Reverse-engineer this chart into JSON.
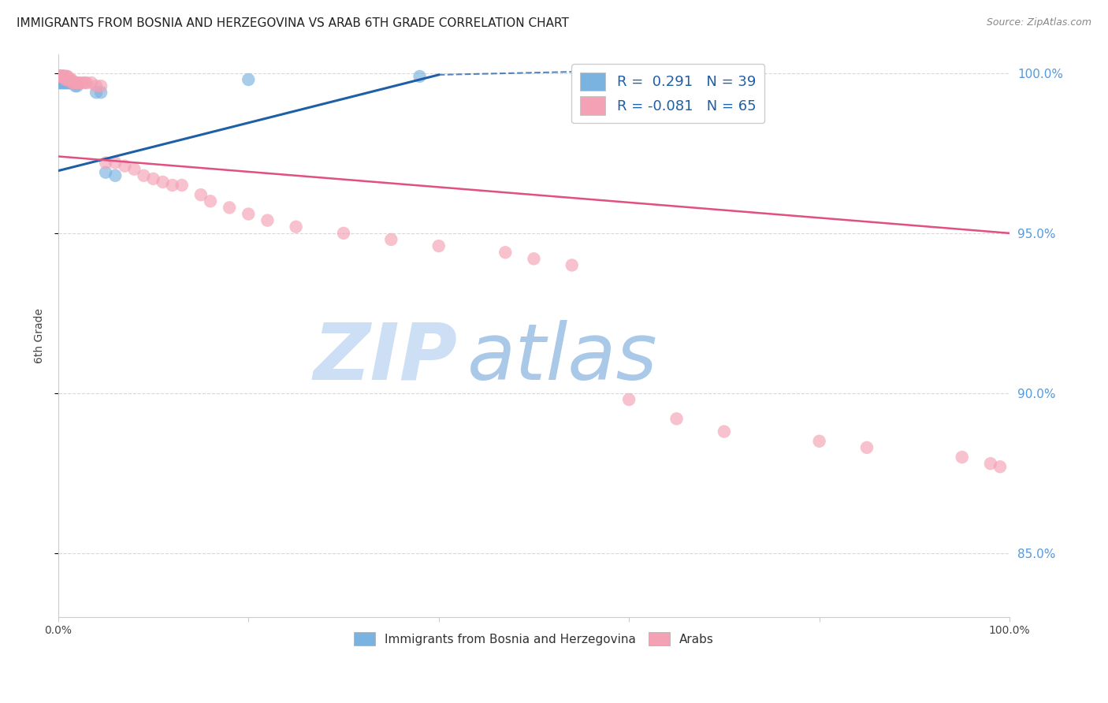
{
  "title": "IMMIGRANTS FROM BOSNIA AND HERZEGOVINA VS ARAB 6TH GRADE CORRELATION CHART",
  "source": "Source: ZipAtlas.com",
  "ylabel": "6th Grade",
  "xlim": [
    0.0,
    1.0
  ],
  "ylim": [
    0.83,
    1.006
  ],
  "blue_color": "#7ab3e0",
  "pink_color": "#f4a0b5",
  "blue_line_color": "#1f5fa6",
  "pink_line_color": "#e05080",
  "watermark_zip": "ZIP",
  "watermark_atlas": "atlas",
  "watermark_color_zip": "#c8dff5",
  "watermark_color_atlas": "#b8cfe8",
  "legend_label1": "Immigrants from Bosnia and Herzegovina",
  "legend_label2": "Arabs",
  "blue_scatter_x": [
    0.001,
    0.001,
    0.001,
    0.002,
    0.002,
    0.002,
    0.002,
    0.003,
    0.003,
    0.003,
    0.004,
    0.004,
    0.004,
    0.005,
    0.005,
    0.005,
    0.006,
    0.006,
    0.006,
    0.007,
    0.007,
    0.008,
    0.008,
    0.009,
    0.009,
    0.01,
    0.01,
    0.011,
    0.012,
    0.013,
    0.015,
    0.018,
    0.02,
    0.04,
    0.045,
    0.05,
    0.06,
    0.2,
    0.38
  ],
  "blue_scatter_y": [
    0.997,
    0.998,
    0.999,
    0.997,
    0.998,
    0.999,
    0.999,
    0.997,
    0.998,
    0.999,
    0.997,
    0.998,
    0.999,
    0.997,
    0.998,
    0.999,
    0.997,
    0.998,
    0.999,
    0.997,
    0.998,
    0.997,
    0.998,
    0.997,
    0.998,
    0.997,
    0.998,
    0.997,
    0.997,
    0.997,
    0.997,
    0.996,
    0.996,
    0.994,
    0.994,
    0.969,
    0.968,
    0.998,
    0.999
  ],
  "pink_scatter_x": [
    0.001,
    0.001,
    0.002,
    0.002,
    0.003,
    0.003,
    0.003,
    0.004,
    0.004,
    0.005,
    0.005,
    0.006,
    0.006,
    0.007,
    0.007,
    0.008,
    0.008,
    0.009,
    0.009,
    0.01,
    0.01,
    0.011,
    0.012,
    0.013,
    0.014,
    0.015,
    0.016,
    0.018,
    0.02,
    0.022,
    0.025,
    0.028,
    0.03,
    0.035,
    0.04,
    0.045,
    0.05,
    0.06,
    0.07,
    0.08,
    0.09,
    0.1,
    0.11,
    0.12,
    0.13,
    0.15,
    0.16,
    0.18,
    0.2,
    0.22,
    0.25,
    0.3,
    0.35,
    0.4,
    0.47,
    0.5,
    0.54,
    0.6,
    0.65,
    0.7,
    0.8,
    0.85,
    0.95,
    0.98,
    0.99
  ],
  "pink_scatter_y": [
    0.999,
    0.999,
    0.999,
    0.999,
    0.999,
    0.999,
    0.999,
    0.999,
    0.999,
    0.999,
    0.999,
    0.999,
    0.999,
    0.999,
    0.999,
    0.998,
    0.999,
    0.998,
    0.999,
    0.998,
    0.999,
    0.998,
    0.998,
    0.998,
    0.998,
    0.997,
    0.997,
    0.997,
    0.997,
    0.997,
    0.997,
    0.997,
    0.997,
    0.997,
    0.996,
    0.996,
    0.972,
    0.972,
    0.971,
    0.97,
    0.968,
    0.967,
    0.966,
    0.965,
    0.965,
    0.962,
    0.96,
    0.958,
    0.956,
    0.954,
    0.952,
    0.95,
    0.948,
    0.946,
    0.944,
    0.942,
    0.94,
    0.898,
    0.892,
    0.888,
    0.885,
    0.883,
    0.88,
    0.878,
    0.877
  ],
  "blue_trend_x0": 0.0,
  "blue_trend_y0": 0.9695,
  "blue_trend_x1": 0.4,
  "blue_trend_y1": 0.9995,
  "blue_trend_ext_x1": 0.55,
  "blue_trend_ext_y1": 1.0005,
  "pink_trend_x0": 0.0,
  "pink_trend_y0": 0.974,
  "pink_trend_x1": 1.0,
  "pink_trend_y1": 0.95,
  "grid_color": "#d8d8d8",
  "right_axis_color": "#5599dd",
  "title_fontsize": 11,
  "source_fontsize": 9,
  "legend_fontsize": 13
}
